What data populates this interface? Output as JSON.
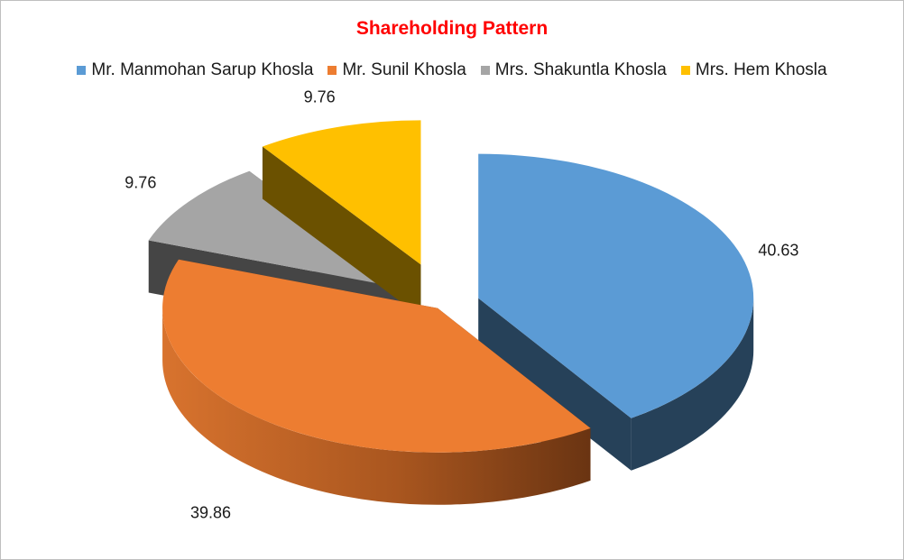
{
  "chart_data": {
    "type": "pie",
    "title": "Shareholding Pattern",
    "legend_position": "top",
    "three_d": true,
    "exploded": true,
    "categories": [
      "Mr. Manmohan Sarup Khosla",
      "Mr. Sunil Khosla",
      "Mrs. Shakuntla Khosla",
      "Mrs. Hem Khosla"
    ],
    "values": [
      40.63,
      39.86,
      9.76,
      9.76
    ],
    "labels": [
      "40.63",
      "39.86",
      "9.76",
      "9.76"
    ],
    "colors": [
      "#5b9bd5",
      "#ed7d31",
      "#a5a5a5",
      "#ffc000"
    ]
  }
}
